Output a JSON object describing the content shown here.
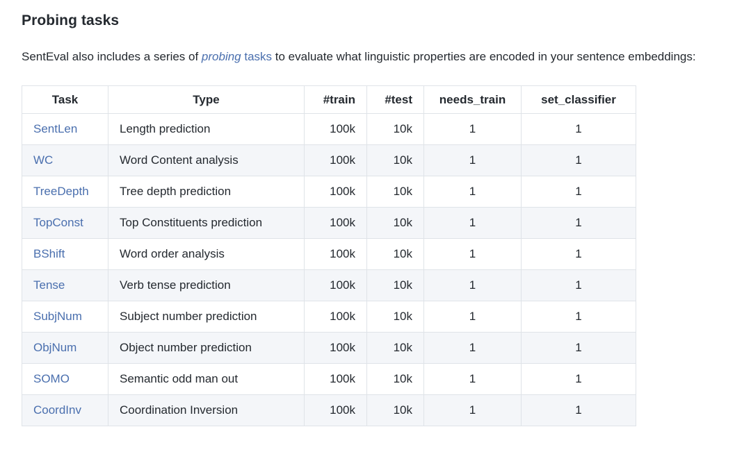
{
  "heading": "Probing tasks",
  "intro": {
    "before": "SentEval also includes a series of ",
    "link_italic": "probing",
    "link_regular": " tasks",
    "after": " to evaluate what linguistic properties are encoded in your sentence embeddings:"
  },
  "colors": {
    "text": "#24292f",
    "link": "#4a6fae",
    "row_stripe": "#f4f6f9",
    "table_border": "#dfe3e8",
    "background": "#ffffff"
  },
  "table": {
    "headers": [
      "Task",
      "Type",
      "#train",
      "#test",
      "needs_train",
      "set_classifier"
    ],
    "column_keys": [
      "task",
      "type",
      "train",
      "test",
      "needs_train",
      "set_classifier"
    ],
    "rows": [
      {
        "task": "SentLen",
        "type": "Length prediction",
        "train": "100k",
        "test": "10k",
        "needs_train": "1",
        "set_classifier": "1"
      },
      {
        "task": "WC",
        "type": "Word Content analysis",
        "train": "100k",
        "test": "10k",
        "needs_train": "1",
        "set_classifier": "1"
      },
      {
        "task": "TreeDepth",
        "type": "Tree depth prediction",
        "train": "100k",
        "test": "10k",
        "needs_train": "1",
        "set_classifier": "1"
      },
      {
        "task": "TopConst",
        "type": "Top Constituents prediction",
        "train": "100k",
        "test": "10k",
        "needs_train": "1",
        "set_classifier": "1"
      },
      {
        "task": "BShift",
        "type": "Word order analysis",
        "train": "100k",
        "test": "10k",
        "needs_train": "1",
        "set_classifier": "1"
      },
      {
        "task": "Tense",
        "type": "Verb tense prediction",
        "train": "100k",
        "test": "10k",
        "needs_train": "1",
        "set_classifier": "1"
      },
      {
        "task": "SubjNum",
        "type": "Subject number prediction",
        "train": "100k",
        "test": "10k",
        "needs_train": "1",
        "set_classifier": "1"
      },
      {
        "task": "ObjNum",
        "type": "Object number prediction",
        "train": "100k",
        "test": "10k",
        "needs_train": "1",
        "set_classifier": "1"
      },
      {
        "task": "SOMO",
        "type": "Semantic odd man out",
        "train": "100k",
        "test": "10k",
        "needs_train": "1",
        "set_classifier": "1"
      },
      {
        "task": "CoordInv",
        "type": "Coordination Inversion",
        "train": "100k",
        "test": "10k",
        "needs_train": "1",
        "set_classifier": "1"
      }
    ]
  }
}
